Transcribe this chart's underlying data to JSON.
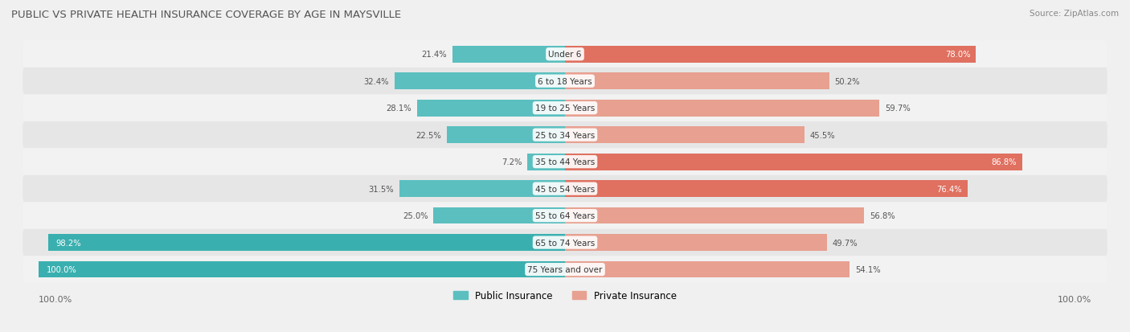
{
  "title": "PUBLIC VS PRIVATE HEALTH INSURANCE COVERAGE BY AGE IN MAYSVILLE",
  "source": "Source: ZipAtlas.com",
  "categories": [
    "Under 6",
    "6 to 18 Years",
    "19 to 25 Years",
    "25 to 34 Years",
    "35 to 44 Years",
    "45 to 54 Years",
    "55 to 64 Years",
    "65 to 74 Years",
    "75 Years and over"
  ],
  "public_values": [
    21.4,
    32.4,
    28.1,
    22.5,
    7.2,
    31.5,
    25.0,
    98.2,
    100.0
  ],
  "private_values": [
    78.0,
    50.2,
    59.7,
    45.5,
    86.8,
    76.4,
    56.8,
    49.7,
    54.1
  ],
  "public_color_strong": "#3aafaf",
  "public_color_normal": "#5bbfbf",
  "private_color_strong": "#e07060",
  "private_color_normal": "#e8a090",
  "public_label": "Public Insurance",
  "private_label": "Private Insurance",
  "row_bg_light": "#f2f2f2",
  "row_bg_dark": "#e6e6e6",
  "fig_bg": "#f0f0f0",
  "title_color": "#555555",
  "source_color": "#888888",
  "label_dark": "#555555",
  "label_white": "#ffffff",
  "axis_label": "100.0%",
  "max_value": 100.0,
  "strong_threshold": 75.0
}
